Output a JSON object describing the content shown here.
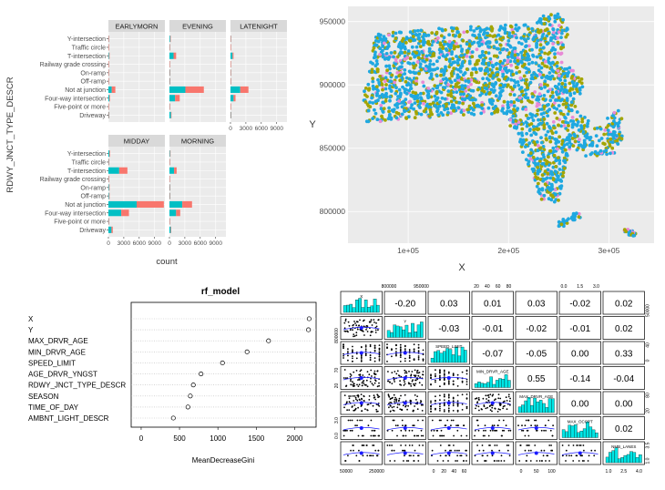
{
  "colors": {
    "panel_bg": "#ebebeb",
    "strip_bg": "#d9d9d9",
    "grid": "#ffffff",
    "series_teal": "#00bfc4",
    "series_salmon": "#f8766d",
    "map_blue": "#1fa8e0",
    "map_olive": "#a3a500",
    "map_pink": "#e88ad6",
    "pairs_fill": "#00e5e5",
    "dot_blue": "#1a1aff"
  },
  "facet_chart": {
    "ylabel": "RDWY_JNCT_TYPE_DESCR",
    "xlabel": "count",
    "x_ticks": [
      "0",
      "3000",
      "6000",
      "9000"
    ],
    "x_tick_values": [
      0,
      3000,
      6000,
      9000
    ],
    "xlim": [
      0,
      11000
    ],
    "categories": [
      "Y-intersection",
      "Traffic circle",
      "T-intersection",
      "Railway grade crossing",
      "On-ramp",
      "Off-ramp",
      "Not at junction",
      "Four-way intersection",
      "Five-point or more",
      "Driveway"
    ],
    "panels": [
      {
        "label": "EARLYMORN",
        "series": [
          {
            "color": "teal",
            "values": [
              20,
              5,
              120,
              5,
              15,
              15,
              650,
              190,
              5,
              60
            ]
          },
          {
            "color": "salmon",
            "values": [
              10,
              0,
              60,
              0,
              5,
              5,
              700,
              120,
              0,
              20
            ]
          }
        ]
      },
      {
        "label": "EVENING",
        "series": [
          {
            "color": "teal",
            "values": [
              150,
              30,
              800,
              10,
              60,
              60,
              3100,
              1100,
              25,
              300
            ]
          },
          {
            "color": "salmon",
            "values": [
              80,
              10,
              500,
              5,
              30,
              30,
              3600,
              900,
              10,
              80
            ]
          }
        ]
      },
      {
        "label": "LATENIGHT",
        "series": [
          {
            "color": "teal",
            "values": [
              30,
              5,
              400,
              5,
              30,
              25,
              1900,
              600,
              5,
              70
            ]
          },
          {
            "color": "salmon",
            "values": [
              20,
              0,
              200,
              0,
              15,
              10,
              1600,
              380,
              0,
              30
            ]
          }
        ]
      },
      {
        "label": "MIDDAY",
        "series": [
          {
            "color": "teal",
            "values": [
              200,
              50,
              2100,
              20,
              120,
              120,
              5500,
              2500,
              40,
              600
            ]
          },
          {
            "color": "salmon",
            "values": [
              120,
              25,
              1600,
              10,
              60,
              60,
              5300,
              1500,
              20,
              250
            ]
          }
        ]
      },
      {
        "label": "MORNING",
        "series": [
          {
            "color": "teal",
            "values": [
              100,
              20,
              900,
              10,
              60,
              60,
              2500,
              1300,
              20,
              250
            ]
          },
          {
            "color": "salmon",
            "values": [
              60,
              10,
              500,
              5,
              30,
              30,
              1900,
              800,
              10,
              100
            ]
          }
        ]
      }
    ]
  },
  "map_chart": {
    "type": "scatter",
    "xlabel": "X",
    "ylabel": "Y",
    "x_ticks": [
      "1e+05",
      "2e+05",
      "3e+05"
    ],
    "x_tick_values": [
      100000,
      200000,
      300000
    ],
    "y_ticks": [
      "800000",
      "850000",
      "900000",
      "950000"
    ],
    "y_tick_values": [
      800000,
      850000,
      900000,
      950000
    ],
    "xlim": [
      40000,
      345000
    ],
    "ylim": [
      775000,
      962000
    ]
  },
  "importance_chart": {
    "type": "scatter",
    "title": "rf_model",
    "xlabel": "MeanDecreaseGini",
    "x_ticks": [
      "0",
      "500",
      "1000",
      "1500",
      "2000"
    ],
    "x_tick_values": [
      0,
      500,
      1000,
      1500,
      2000
    ],
    "xlim": [
      -130,
      2280
    ],
    "variables": [
      "X",
      "Y",
      "MAX_DRVR_AGE",
      "MIN_DRVR_AGE",
      "SPEED_LIMIT",
      "AGE_DRVR_YNGST",
      "RDWY_JNCT_TYPE_DESCR",
      "SEASON",
      "TIME_OF_DAY",
      "AMBNT_LIGHT_DESCR"
    ],
    "values": [
      2190,
      2180,
      1660,
      1380,
      1060,
      780,
      680,
      640,
      610,
      420
    ]
  },
  "pairs_chart": {
    "variables": [
      "X",
      "Y",
      "SPEED_LIMIT",
      "MIN_DRVR_AGE",
      "MAX_DRVR_AGE",
      "MAX_OCCPT",
      "NMB_LANES"
    ],
    "correlations": [
      {
        "row": 1,
        "col": 2,
        "value": "-0.20"
      },
      {
        "row": 1,
        "col": 3,
        "value": "0.03"
      },
      {
        "row": 1,
        "col": 4,
        "value": "0.01"
      },
      {
        "row": 1,
        "col": 5,
        "value": "0.03"
      },
      {
        "row": 1,
        "col": 6,
        "value": "-0.02"
      },
      {
        "row": 1,
        "col": 7,
        "value": "0.02"
      },
      {
        "row": 2,
        "col": 3,
        "value": "-0.03"
      },
      {
        "row": 2,
        "col": 4,
        "value": "-0.01"
      },
      {
        "row": 2,
        "col": 5,
        "value": "-0.02"
      },
      {
        "row": 2,
        "col": 6,
        "value": "-0.01"
      },
      {
        "row": 2,
        "col": 7,
        "value": "0.02"
      },
      {
        "row": 3,
        "col": 4,
        "value": "-0.07"
      },
      {
        "row": 3,
        "col": 5,
        "value": "-0.05"
      },
      {
        "row": 3,
        "col": 6,
        "value": "0.00"
      },
      {
        "row": 3,
        "col": 7,
        "value": "0.33"
      },
      {
        "row": 4,
        "col": 5,
        "value": "0.55"
      },
      {
        "row": 4,
        "col": 6,
        "value": "-0.14"
      },
      {
        "row": 4,
        "col": 7,
        "value": "-0.04"
      },
      {
        "row": 5,
        "col": 6,
        "value": "0.00"
      },
      {
        "row": 5,
        "col": 7,
        "value": "0.00"
      },
      {
        "row": 6,
        "col": 7,
        "value": "0.02"
      }
    ],
    "top_axis_labels": [
      {
        "col": 2,
        "ticks": [
          "800000",
          "950000"
        ]
      },
      {
        "col": 4,
        "ticks": [
          "20",
          "40",
          "60",
          "80"
        ]
      },
      {
        "col": 6,
        "ticks": [
          "0.0",
          "1.5",
          "3.0"
        ]
      }
    ],
    "bottom_axis_labels": [
      {
        "col": 1,
        "ticks": [
          "50000",
          "250000"
        ]
      },
      {
        "col": 3,
        "ticks": [
          "0",
          "20",
          "40",
          "60"
        ]
      },
      {
        "col": 5,
        "ticks": [
          "0",
          "50",
          "100"
        ]
      },
      {
        "col": 7,
        "ticks": [
          "1.0",
          "2.5",
          "4.0"
        ]
      }
    ],
    "right_axis_labels": [
      {
        "row": 1,
        "ticks": [
          "50000"
        ]
      },
      {
        "row": 3,
        "ticks": [
          "0",
          "40"
        ]
      },
      {
        "row": 5,
        "ticks": [
          "20",
          "80"
        ]
      },
      {
        "row": 7,
        "ticks": [
          "1.0",
          "3.5"
        ]
      }
    ],
    "left_axis_labels": [
      {
        "row": 2,
        "ticks": [
          "800000"
        ]
      },
      {
        "row": 4,
        "ticks": [
          "20",
          "70"
        ]
      },
      {
        "row": 6,
        "ticks": [
          "0.0",
          "3.0"
        ]
      }
    ]
  },
  "chart_data": [
    {
      "type": "bar",
      "xlabel": "count",
      "ylabel": "RDWY_JNCT_TYPE_DESCR",
      "facets": [
        "EARLYMORN",
        "EVENING",
        "LATENIGHT",
        "MIDDAY",
        "MORNING"
      ],
      "categories": [
        "Y-intersection",
        "Traffic circle",
        "T-intersection",
        "Railway grade crossing",
        "On-ramp",
        "Off-ramp",
        "Not at junction",
        "Four-way intersection",
        "Five-point or more",
        "Driveway"
      ],
      "xlim": [
        0,
        11000
      ],
      "stacked": true,
      "note_values_estimated": true
    },
    {
      "type": "scatter",
      "xlabel": "X",
      "ylabel": "Y",
      "xlim": [
        40000,
        345000
      ],
      "ylim": [
        775000,
        962000
      ],
      "grid": true
    },
    {
      "type": "scatter",
      "title": "rf_model",
      "xlabel": "MeanDecreaseGini",
      "categories": [
        "X",
        "Y",
        "MAX_DRVR_AGE",
        "MIN_DRVR_AGE",
        "SPEED_LIMIT",
        "AGE_DRVR_YNGST",
        "RDWY_JNCT_TYPE_DESCR",
        "SEASON",
        "TIME_OF_DAY",
        "AMBNT_LIGHT_DESCR"
      ],
      "values": [
        2190,
        2180,
        1660,
        1380,
        1060,
        780,
        680,
        640,
        610,
        420
      ],
      "xlim": [
        -130,
        2280
      ]
    },
    {
      "type": "table",
      "variables": [
        "X",
        "Y",
        "SPEED_LIMIT",
        "MIN_DRVR_AGE",
        "MAX_DRVR_AGE",
        "MAX_OCCPT",
        "NMB_LANES"
      ],
      "upper_correlations": [
        [
          "",
          "-0.20",
          "0.03",
          "0.01",
          "0.03",
          "-0.02",
          "0.02"
        ],
        [
          "",
          "",
          "-0.03",
          "-0.01",
          "-0.02",
          "-0.01",
          "0.02"
        ],
        [
          "",
          "",
          "",
          "-0.07",
          "-0.05",
          "0.00",
          "0.33"
        ],
        [
          "",
          "",
          "",
          "",
          "0.55",
          "-0.14",
          "-0.04"
        ],
        [
          "",
          "",
          "",
          "",
          "",
          "0.00",
          "0.00"
        ],
        [
          "",
          "",
          "",
          "",
          "",
          "",
          "0.02"
        ]
      ]
    }
  ]
}
